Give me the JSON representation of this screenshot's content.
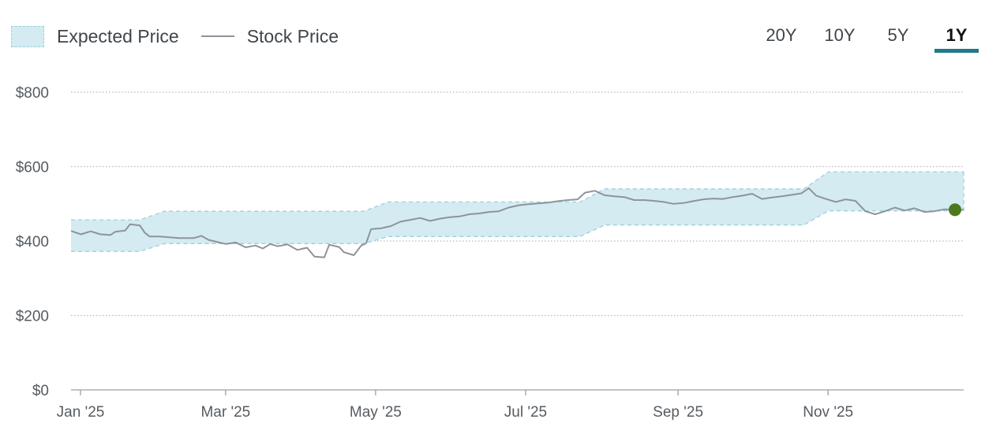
{
  "legend": {
    "expected_label": "Expected Price",
    "stock_label": "Stock Price"
  },
  "range_tabs": [
    {
      "label": "20Y",
      "active": false
    },
    {
      "label": "10Y",
      "active": false
    },
    {
      "label": "5Y",
      "active": false
    },
    {
      "label": "1Y",
      "active": true
    }
  ],
  "colors": {
    "band_fill": "#d4ebf1",
    "band_edge": "#9dd0dd",
    "line": "#8e949a",
    "grid": "#b5b9bd",
    "endpoint": "#4a7a1c",
    "accent": "#1f7a8c"
  },
  "chart_data": {
    "type": "area",
    "title": "",
    "xlabel": "",
    "ylabel": "",
    "ylim": [
      0,
      800
    ],
    "xlim": [
      "2025-01-01",
      "2025-12-30"
    ],
    "y_ticks": [
      {
        "value": 0,
        "label": "$0"
      },
      {
        "value": 200,
        "label": "$200"
      },
      {
        "value": 400,
        "label": "$400"
      },
      {
        "value": 600,
        "label": "$600"
      },
      {
        "value": 800,
        "label": "$800"
      }
    ],
    "x_ticks": [
      {
        "date": "2025-01-01",
        "label": "Jan '25"
      },
      {
        "date": "2025-03-01",
        "label": "Mar '25"
      },
      {
        "date": "2025-05-01",
        "label": "May '25"
      },
      {
        "date": "2025-07-01",
        "label": "Jul '25"
      },
      {
        "date": "2025-09-01",
        "label": "Sep '25"
      },
      {
        "date": "2025-11-01",
        "label": "Nov '25"
      }
    ],
    "grid": "horizontal dotted",
    "legend_position": "top-left",
    "series": [
      {
        "name": "Expected Price",
        "type": "band",
        "points": [
          {
            "date": "2025-01-01",
            "low": 372,
            "high": 457
          },
          {
            "date": "2025-01-29",
            "low": 372,
            "high": 457
          },
          {
            "date": "2025-02-08",
            "low": 393,
            "high": 480
          },
          {
            "date": "2025-04-30",
            "low": 393,
            "high": 480
          },
          {
            "date": "2025-05-10",
            "low": 412,
            "high": 505
          },
          {
            "date": "2025-07-27",
            "low": 412,
            "high": 505
          },
          {
            "date": "2025-08-06",
            "low": 443,
            "high": 540
          },
          {
            "date": "2025-10-26",
            "low": 443,
            "high": 540
          },
          {
            "date": "2025-11-05",
            "low": 481,
            "high": 586
          },
          {
            "date": "2025-12-30",
            "low": 481,
            "high": 586
          }
        ]
      },
      {
        "name": "Stock Price",
        "type": "line",
        "points": [
          [
            "2025-01-01",
            427
          ],
          [
            "2025-01-05",
            418
          ],
          [
            "2025-01-09",
            426
          ],
          [
            "2025-01-13",
            418
          ],
          [
            "2025-01-17",
            416
          ],
          [
            "2025-01-19",
            425
          ],
          [
            "2025-01-23",
            428
          ],
          [
            "2025-01-25",
            445
          ],
          [
            "2025-01-29",
            442
          ],
          [
            "2025-01-31",
            422
          ],
          [
            "2025-02-02",
            412
          ],
          [
            "2025-02-06",
            412
          ],
          [
            "2025-02-10",
            410
          ],
          [
            "2025-02-14",
            408
          ],
          [
            "2025-02-20",
            408
          ],
          [
            "2025-02-23",
            414
          ],
          [
            "2025-02-26",
            403
          ],
          [
            "2025-03-01",
            398
          ],
          [
            "2025-03-05",
            392
          ],
          [
            "2025-03-09",
            396
          ],
          [
            "2025-03-13",
            383
          ],
          [
            "2025-03-17",
            388
          ],
          [
            "2025-03-20",
            380
          ],
          [
            "2025-03-23",
            392
          ],
          [
            "2025-03-26",
            386
          ],
          [
            "2025-03-30",
            391
          ],
          [
            "2025-04-03",
            376
          ],
          [
            "2025-04-07",
            382
          ],
          [
            "2025-04-10",
            358
          ],
          [
            "2025-04-14",
            356
          ],
          [
            "2025-04-16",
            390
          ],
          [
            "2025-04-20",
            384
          ],
          [
            "2025-04-22",
            370
          ],
          [
            "2025-04-26",
            362
          ],
          [
            "2025-04-29",
            388
          ],
          [
            "2025-05-01",
            394
          ],
          [
            "2025-05-03",
            432
          ],
          [
            "2025-05-07",
            434
          ],
          [
            "2025-05-11",
            440
          ],
          [
            "2025-05-15",
            452
          ],
          [
            "2025-05-19",
            457
          ],
          [
            "2025-05-23",
            462
          ],
          [
            "2025-05-27",
            454
          ],
          [
            "2025-05-31",
            460
          ],
          [
            "2025-06-04",
            464
          ],
          [
            "2025-06-08",
            466
          ],
          [
            "2025-06-12",
            472
          ],
          [
            "2025-06-16",
            474
          ],
          [
            "2025-06-20",
            478
          ],
          [
            "2025-06-24",
            480
          ],
          [
            "2025-06-28",
            490
          ],
          [
            "2025-07-02",
            496
          ],
          [
            "2025-07-06",
            499
          ],
          [
            "2025-07-10",
            501
          ],
          [
            "2025-07-14",
            503
          ],
          [
            "2025-07-18",
            507
          ],
          [
            "2025-07-22",
            510
          ],
          [
            "2025-07-26",
            512
          ],
          [
            "2025-07-29",
            530
          ],
          [
            "2025-08-02",
            535
          ],
          [
            "2025-08-06",
            523
          ],
          [
            "2025-08-10",
            520
          ],
          [
            "2025-08-14",
            518
          ],
          [
            "2025-08-18",
            510
          ],
          [
            "2025-08-22",
            510
          ],
          [
            "2025-08-26",
            508
          ],
          [
            "2025-08-30",
            505
          ],
          [
            "2025-09-03",
            500
          ],
          [
            "2025-09-07",
            502
          ],
          [
            "2025-09-11",
            507
          ],
          [
            "2025-09-15",
            512
          ],
          [
            "2025-09-19",
            514
          ],
          [
            "2025-09-23",
            513
          ],
          [
            "2025-09-27",
            518
          ],
          [
            "2025-10-01",
            522
          ],
          [
            "2025-10-05",
            527
          ],
          [
            "2025-10-09",
            513
          ],
          [
            "2025-10-13",
            517
          ],
          [
            "2025-10-17",
            520
          ],
          [
            "2025-10-21",
            524
          ],
          [
            "2025-10-25",
            528
          ],
          [
            "2025-10-28",
            542
          ],
          [
            "2025-10-31",
            522
          ],
          [
            "2025-11-04",
            513
          ],
          [
            "2025-11-08",
            505
          ],
          [
            "2025-11-12",
            512
          ],
          [
            "2025-11-16",
            508
          ],
          [
            "2025-11-20",
            480
          ],
          [
            "2025-11-24",
            472
          ],
          [
            "2025-11-28",
            480
          ],
          [
            "2025-12-02",
            490
          ],
          [
            "2025-12-06",
            482
          ],
          [
            "2025-12-10",
            488
          ],
          [
            "2025-12-14",
            478
          ],
          [
            "2025-12-18",
            480
          ],
          [
            "2025-12-22",
            485
          ],
          [
            "2025-12-26",
            484
          ],
          [
            "2025-12-30",
            484
          ]
        ]
      }
    ]
  }
}
